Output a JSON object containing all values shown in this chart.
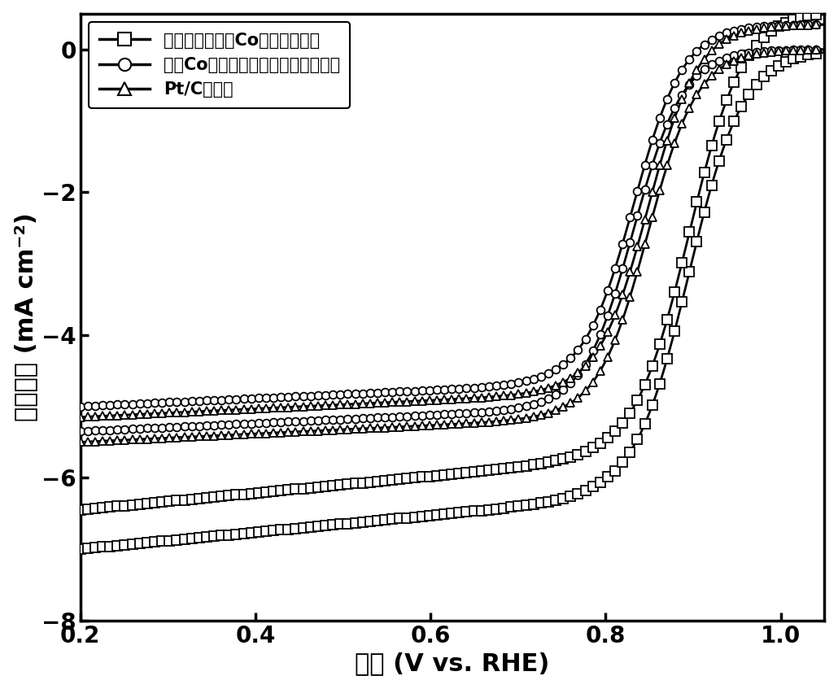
{
  "xlabel": "电位 (V vs. RHE)",
  "ylabel": "电流密度 (mA cm⁻²)",
  "xlim": [
    0.2,
    1.05
  ],
  "ylim": [
    -8,
    0.5
  ],
  "xticks": [
    0.2,
    0.4,
    0.6,
    0.8,
    1.0
  ],
  "yticks": [
    -8,
    -6,
    -4,
    -2,
    0
  ],
  "legend_labels": [
    "原子级分散金属Co氧还原催化剑",
    "金属Co纳米颗粒负载碳氧还原催化剑",
    "Pt/C催化剑"
  ],
  "curve1": {
    "E_half": 0.9,
    "j_lim_low": -6.85,
    "j_lim_high": -6.25,
    "slope": 32,
    "marker": "s",
    "n_markers": 100
  },
  "curve2": {
    "E_half": 0.83,
    "j_lim_low": -5.3,
    "j_lim_high": -4.85,
    "slope": 35,
    "marker": "o",
    "n_markers": 100
  },
  "curve3": {
    "E_half": 0.848,
    "j_lim_low": -5.45,
    "j_lim_high": -4.98,
    "slope": 35,
    "marker": "^",
    "n_markers": 100
  },
  "linewidth": 2.0,
  "marker_size": 7,
  "x_label_fontsize": 22,
  "y_label_fontsize": 22,
  "tick_fontsize": 20,
  "legend_fontsize": 15,
  "spine_linewidth": 2.5
}
